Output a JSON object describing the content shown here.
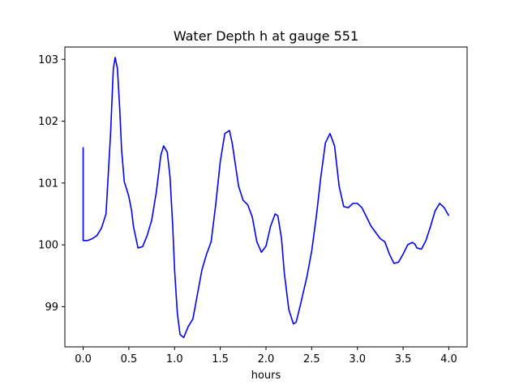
{
  "chart_data": {
    "type": "line",
    "title": "Water Depth h at gauge 551",
    "xlabel": "hours",
    "ylabel": "",
    "xlim": [
      -0.2,
      4.2
    ],
    "ylim": [
      98.35,
      103.2
    ],
    "xticks": [
      0.0,
      0.5,
      1.0,
      1.5,
      2.0,
      2.5,
      3.0,
      3.5,
      4.0
    ],
    "xtick_labels": [
      "0.0",
      "0.5",
      "1.0",
      "1.5",
      "2.0",
      "2.5",
      "3.0",
      "3.5",
      "4.0"
    ],
    "yticks": [
      99,
      100,
      101,
      102,
      103
    ],
    "ytick_labels": [
      "99",
      "100",
      "101",
      "102",
      "103"
    ],
    "grid": false,
    "legend": "none",
    "series": [
      {
        "color": "#0000ff",
        "x": [
          0.0,
          0.0,
          0.05,
          0.1,
          0.15,
          0.2,
          0.25,
          0.3,
          0.33,
          0.35,
          0.375,
          0.4,
          0.42,
          0.45,
          0.48,
          0.5,
          0.53,
          0.55,
          0.6,
          0.65,
          0.7,
          0.75,
          0.8,
          0.85,
          0.88,
          0.92,
          0.95,
          0.98,
          1.0,
          1.03,
          1.06,
          1.1,
          1.15,
          1.2,
          1.25,
          1.3,
          1.35,
          1.4,
          1.45,
          1.5,
          1.55,
          1.6,
          1.63,
          1.67,
          1.7,
          1.75,
          1.8,
          1.85,
          1.9,
          1.95,
          2.0,
          2.05,
          2.1,
          2.13,
          2.17,
          2.2,
          2.25,
          2.3,
          2.33,
          2.38,
          2.45,
          2.5,
          2.55,
          2.6,
          2.65,
          2.7,
          2.75,
          2.8,
          2.85,
          2.9,
          2.95,
          3.0,
          3.05,
          3.1,
          3.15,
          3.2,
          3.25,
          3.3,
          3.35,
          3.4,
          3.45,
          3.5,
          3.55,
          3.6,
          3.63,
          3.65,
          3.7,
          3.75,
          3.8,
          3.85,
          3.9,
          3.95,
          4.0
        ],
        "y": [
          101.58,
          100.07,
          100.07,
          100.1,
          100.15,
          100.27,
          100.5,
          101.8,
          102.85,
          103.03,
          102.85,
          102.2,
          101.55,
          101.02,
          100.88,
          100.78,
          100.55,
          100.3,
          99.95,
          99.97,
          100.15,
          100.4,
          100.85,
          101.45,
          101.6,
          101.5,
          101.1,
          100.3,
          99.6,
          98.9,
          98.55,
          98.5,
          98.68,
          98.8,
          99.2,
          99.6,
          99.85,
          100.05,
          100.65,
          101.35,
          101.8,
          101.85,
          101.65,
          101.25,
          100.95,
          100.72,
          100.65,
          100.45,
          100.05,
          99.88,
          99.98,
          100.3,
          100.5,
          100.47,
          100.1,
          99.55,
          98.95,
          98.72,
          98.75,
          99.05,
          99.5,
          99.9,
          100.45,
          101.1,
          101.65,
          101.8,
          101.6,
          100.95,
          100.62,
          100.6,
          100.67,
          100.67,
          100.6,
          100.45,
          100.3,
          100.2,
          100.1,
          100.05,
          99.85,
          99.7,
          99.72,
          99.85,
          100.0,
          100.04,
          100.01,
          99.95,
          99.93,
          100.07,
          100.3,
          100.55,
          100.67,
          100.6,
          100.47
        ]
      }
    ]
  }
}
